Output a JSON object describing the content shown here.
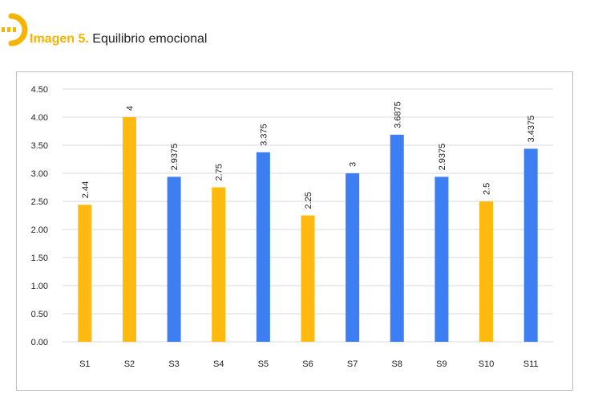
{
  "header": {
    "caption_lead": "Imagen 5.",
    "caption_text": "Equilibrio emocional"
  },
  "colors": {
    "accent": "#f5b400",
    "yellow": "#ffb90f",
    "blue": "#3d7ff2",
    "grid": "#d9d9d9"
  },
  "chart_data": {
    "type": "bar",
    "categories": [
      "S1",
      "S2",
      "S3",
      "S4",
      "S5",
      "S6",
      "S7",
      "S8",
      "S9",
      "S10",
      "S11"
    ],
    "values": [
      2.44,
      4,
      2.9375,
      2.75,
      3.375,
      2.25,
      3,
      3.6875,
      2.9375,
      2.5,
      3.4375
    ],
    "value_labels": [
      "2.44",
      "4",
      "2.9375",
      "2.75",
      "3.375",
      "2.25",
      "3",
      "3.6875",
      "2.9375",
      "2.5",
      "3.4375"
    ],
    "bar_colors": [
      "yellow",
      "yellow",
      "blue",
      "yellow",
      "blue",
      "yellow",
      "blue",
      "blue",
      "blue",
      "yellow",
      "blue"
    ],
    "ylim": [
      0,
      4.5
    ],
    "yticks": [
      "0.00",
      "0.50",
      "1.00",
      "1.50",
      "2.00",
      "2.50",
      "3.00",
      "3.50",
      "4.00",
      "4.50"
    ],
    "grid": true,
    "legend": "none",
    "title": "",
    "xlabel": "",
    "ylabel": ""
  }
}
